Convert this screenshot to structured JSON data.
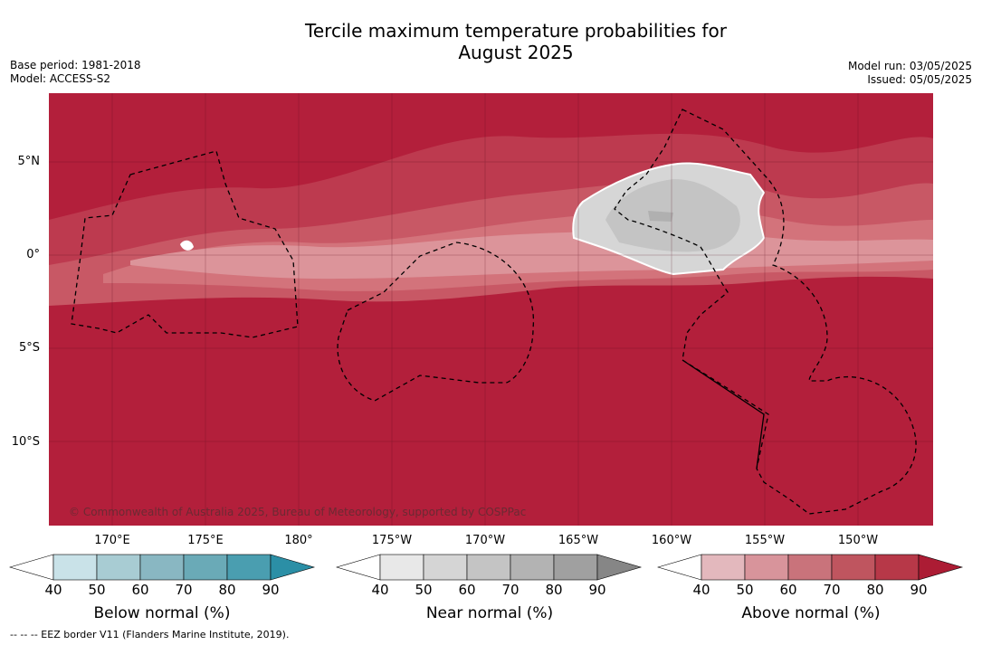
{
  "header": {
    "title_line1": "Tercile maximum temperature probabilities for",
    "title_line2": "August 2025",
    "base_period": "Base period: 1981-2018",
    "model": "Model: ACCESS-S2",
    "model_run": "Model run: 03/05/2025",
    "issued": "Issued: 05/05/2025"
  },
  "map": {
    "lat_labels": [
      "5°N",
      "0°",
      "5°S",
      "10°S"
    ],
    "lon_labels": [
      "170°E",
      "175°E",
      "180°",
      "175°W",
      "170°W",
      "165°W",
      "160°W",
      "155°W",
      "150°W"
    ],
    "copyright": "© Commonwealth of Australia 2025, Bureau of Meteorology, supported by COSPPac",
    "colors": {
      "above_90": "#b31f3b",
      "above_80": "#bd3a4f",
      "above_70": "#c85865",
      "above_60": "#d3737b",
      "above_50": "#dc949a",
      "near_50": "#d6d6d6",
      "near_60": "#c4c4c4",
      "near_70": "#b0b0b0"
    }
  },
  "legend": {
    "ticks": [
      "40",
      "50",
      "60",
      "70",
      "80",
      "90"
    ],
    "below": {
      "title": "Below normal (%)",
      "colors": [
        "#c9e2e8",
        "#a8ccd3",
        "#89b7c2",
        "#6aaab7",
        "#4a9eb0",
        "#2b8fa6"
      ]
    },
    "near": {
      "title": "Near normal (%)",
      "colors": [
        "#e8e8e8",
        "#d5d5d5",
        "#c4c4c4",
        "#b3b3b3",
        "#a0a0a0",
        "#868686"
      ]
    },
    "above": {
      "title": "Above normal (%)",
      "colors": [
        "#e3b8bd",
        "#d8949b",
        "#c9737b",
        "#bf555f",
        "#b73848",
        "#ac1c34"
      ]
    }
  },
  "footnote": "--  --  -- EEZ border V11 (Flanders Marine Institute, 2019)."
}
